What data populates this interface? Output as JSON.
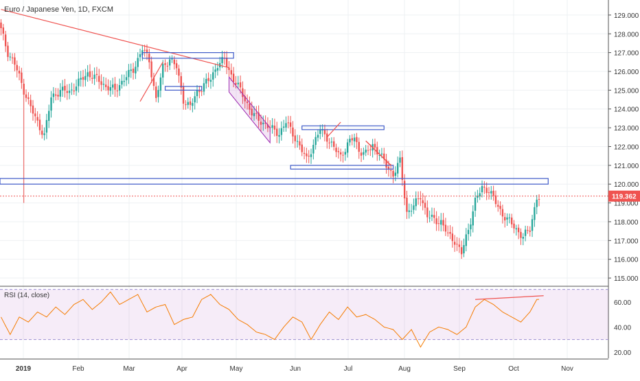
{
  "chart_data": [
    {
      "type": "candlestick",
      "title": "Euro / Japanese Yen, 1D, FXCM",
      "y_ticks": [
        "129.000",
        "128.000",
        "127.000",
        "126.000",
        "125.000",
        "124.000",
        "123.000",
        "122.000",
        "121.000",
        "120.000",
        "119.000",
        "118.000",
        "117.000",
        "116.000",
        "115.000"
      ],
      "ylim": [
        114.6,
        129.8
      ],
      "x_ticks": [
        "2019",
        "Feb",
        "Mar",
        "Apr",
        "May",
        "Jun",
        "Jul",
        "Aug",
        "Sep",
        "Oct",
        "Nov"
      ],
      "last_price": "119.362",
      "close_key_points": [
        [
          0,
          128.2
        ],
        [
          3,
          127.0
        ],
        [
          6,
          126.4
        ],
        [
          10,
          125.0
        ],
        [
          15,
          123.5
        ],
        [
          19,
          122.6
        ],
        [
          22,
          124.6
        ],
        [
          26,
          125.0
        ],
        [
          30,
          124.9
        ],
        [
          34,
          125.4
        ],
        [
          38,
          125.9
        ],
        [
          42,
          125.6
        ],
        [
          46,
          125.2
        ],
        [
          50,
          125.0
        ],
        [
          54,
          125.6
        ],
        [
          58,
          126.1
        ],
        [
          62,
          127.2
        ],
        [
          65,
          126.6
        ],
        [
          68,
          124.5
        ],
        [
          71,
          126.2
        ],
        [
          74,
          126.7
        ],
        [
          77,
          126.2
        ],
        [
          80,
          124.5
        ],
        [
          83,
          124.1
        ],
        [
          86,
          124.9
        ],
        [
          89,
          125.3
        ],
        [
          92,
          125.6
        ],
        [
          95,
          126.4
        ],
        [
          98,
          126.6
        ],
        [
          101,
          125.8
        ],
        [
          104,
          125.2
        ],
        [
          107,
          124.5
        ],
        [
          110,
          123.8
        ],
        [
          113,
          123.4
        ],
        [
          116,
          123.2
        ],
        [
          119,
          122.9
        ],
        [
          122,
          122.7
        ],
        [
          125,
          123.3
        ],
        [
          128,
          122.7
        ],
        [
          131,
          122.0
        ],
        [
          134,
          121.3
        ],
        [
          137,
          122.1
        ],
        [
          140,
          122.9
        ],
        [
          143,
          122.5
        ],
        [
          146,
          121.9
        ],
        [
          149,
          121.5
        ],
        [
          152,
          122.1
        ],
        [
          155,
          122.5
        ],
        [
          157,
          121.8
        ],
        [
          160,
          121.6
        ],
        [
          163,
          122.1
        ],
        [
          166,
          121.6
        ],
        [
          169,
          121.0
        ],
        [
          172,
          120.5
        ],
        [
          175,
          121.2
        ],
        [
          178,
          118.5
        ],
        [
          181,
          118.8
        ],
        [
          184,
          119.4
        ],
        [
          187,
          118.3
        ],
        [
          190,
          118.1
        ],
        [
          193,
          118.0
        ],
        [
          196,
          117.3
        ],
        [
          199,
          117.0
        ],
        [
          202,
          116.3
        ],
        [
          205,
          117.6
        ],
        [
          208,
          119.1
        ],
        [
          211,
          119.8
        ],
        [
          214,
          119.7
        ],
        [
          217,
          119.0
        ],
        [
          220,
          118.4
        ],
        [
          223,
          118.0
        ],
        [
          226,
          117.6
        ],
        [
          229,
          117.2
        ],
        [
          232,
          117.6
        ],
        [
          235,
          119.3
        ]
      ]
    },
    {
      "type": "line",
      "title": "RSI (14, close)",
      "y_ticks": [
        "60.00",
        "40.00",
        "20.00"
      ],
      "ylim": [
        15,
        72
      ],
      "bands": [
        30,
        70
      ],
      "key_points": [
        [
          0,
          48
        ],
        [
          4,
          34
        ],
        [
          8,
          48
        ],
        [
          12,
          44
        ],
        [
          16,
          52
        ],
        [
          20,
          48
        ],
        [
          24,
          56
        ],
        [
          28,
          50
        ],
        [
          32,
          58
        ],
        [
          36,
          62
        ],
        [
          40,
          54
        ],
        [
          44,
          60
        ],
        [
          48,
          68
        ],
        [
          52,
          58
        ],
        [
          56,
          62
        ],
        [
          60,
          66
        ],
        [
          64,
          52
        ],
        [
          68,
          56
        ],
        [
          72,
          58
        ],
        [
          76,
          42
        ],
        [
          80,
          46
        ],
        [
          84,
          48
        ],
        [
          88,
          62
        ],
        [
          92,
          66
        ],
        [
          96,
          58
        ],
        [
          100,
          54
        ],
        [
          104,
          46
        ],
        [
          108,
          42
        ],
        [
          112,
          36
        ],
        [
          116,
          34
        ],
        [
          120,
          30
        ],
        [
          124,
          40
        ],
        [
          128,
          48
        ],
        [
          132,
          44
        ],
        [
          136,
          30
        ],
        [
          140,
          42
        ],
        [
          144,
          52
        ],
        [
          148,
          46
        ],
        [
          152,
          56
        ],
        [
          156,
          48
        ],
        [
          160,
          50
        ],
        [
          164,
          46
        ],
        [
          168,
          40
        ],
        [
          172,
          38
        ],
        [
          176,
          30
        ],
        [
          180,
          38
        ],
        [
          184,
          24
        ],
        [
          188,
          36
        ],
        [
          192,
          40
        ],
        [
          196,
          38
        ],
        [
          200,
          34
        ],
        [
          204,
          40
        ],
        [
          208,
          56
        ],
        [
          212,
          62
        ],
        [
          216,
          58
        ],
        [
          220,
          52
        ],
        [
          224,
          48
        ],
        [
          228,
          44
        ],
        [
          232,
          52
        ],
        [
          235,
          62
        ]
      ]
    }
  ]
}
